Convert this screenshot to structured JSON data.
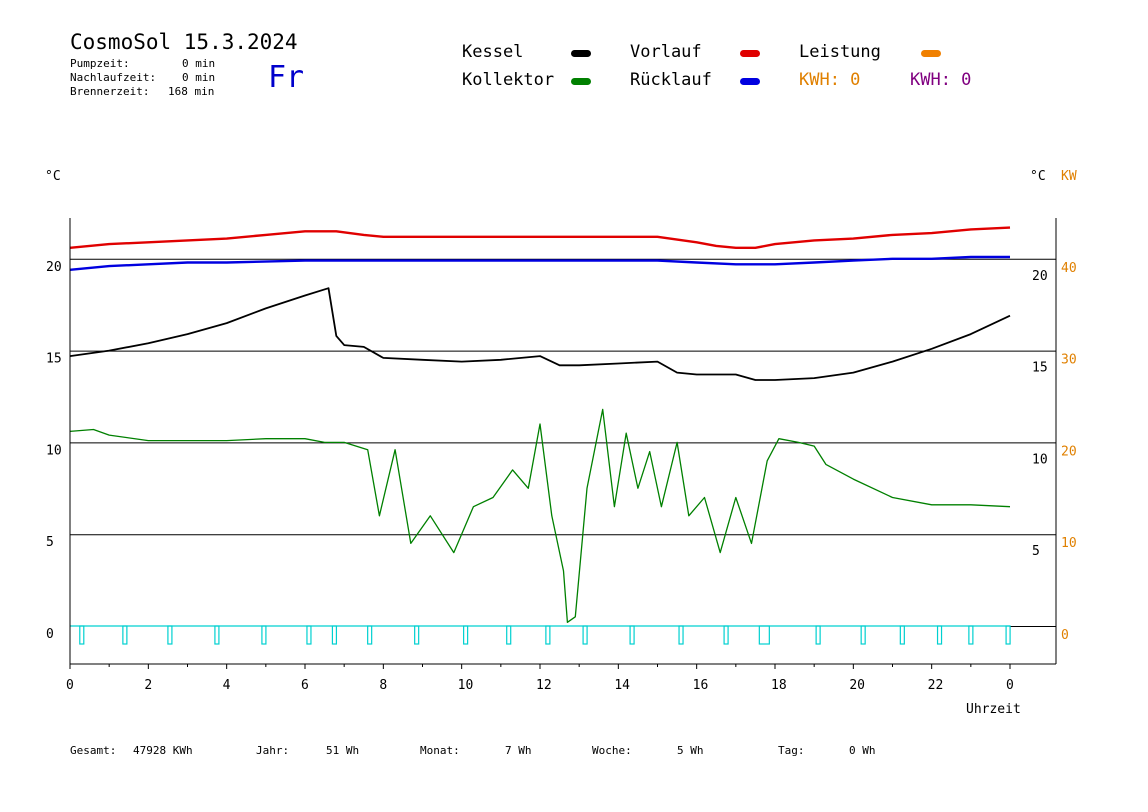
{
  "header": {
    "title": "CosmoSol 15.3.2024",
    "day": "Fr",
    "info": [
      {
        "label": "Pumpzeit:",
        "value": "0 min"
      },
      {
        "label": "Nachlaufzeit:",
        "value": "0 min"
      },
      {
        "label": "Brennerzeit:",
        "value": "168 min"
      }
    ]
  },
  "legend": {
    "kessel": {
      "label": "Kessel",
      "color": "#000000"
    },
    "vorlauf": {
      "label": "Vorlauf",
      "color": "#e00000"
    },
    "leistung": {
      "label": "Leistung",
      "color": "#f08000"
    },
    "kollektor": {
      "label": "Kollektor",
      "color": "#008000"
    },
    "ruecklauf": {
      "label": "Rücklauf",
      "color": "#0000e0"
    },
    "kwh_orange": "KWH: 0",
    "kwh_purple": "KWH: 0",
    "kwh_orange_color": "#e08000",
    "kwh_purple_color": "#800080"
  },
  "axes": {
    "left_unit": "°C",
    "right_unit": "°C",
    "right_unit2": "KW",
    "xlabel": "Uhrzeit"
  },
  "chart_data": {
    "type": "line",
    "xlabel": "Uhrzeit",
    "x_ticks": [
      "0",
      "2",
      "4",
      "6",
      "8",
      "10",
      "12",
      "14",
      "16",
      "18",
      "20",
      "22",
      "0"
    ],
    "xlim": [
      0,
      24
    ],
    "ylim": [
      -1.5,
      22.5
    ],
    "y_ticks_left": [
      0,
      5,
      10,
      15,
      20
    ],
    "y_ticks_right_temp": [
      5,
      10,
      15,
      20
    ],
    "y_ticks_right_kw": [
      0,
      10,
      20,
      30,
      40
    ],
    "grid_lines_y": [
      5,
      10,
      15,
      20
    ],
    "series": [
      {
        "name": "Vorlauf",
        "color": "#e00000",
        "x": [
          0,
          1,
          2,
          3,
          4,
          5,
          6,
          6.8,
          7.5,
          8,
          10,
          12,
          14,
          15,
          16,
          16.5,
          17,
          17.5,
          18,
          19,
          20,
          21,
          22,
          23,
          24
        ],
        "y": [
          20.6,
          20.8,
          20.9,
          21.0,
          21.1,
          21.3,
          21.5,
          21.5,
          21.3,
          21.2,
          21.2,
          21.2,
          21.2,
          21.2,
          20.9,
          20.7,
          20.6,
          20.6,
          20.8,
          21.0,
          21.1,
          21.3,
          21.4,
          21.6,
          21.7
        ]
      },
      {
        "name": "Rücklauf",
        "color": "#0000e0",
        "x": [
          0,
          1,
          2,
          3,
          4,
          6,
          8,
          10,
          12,
          14,
          15,
          16,
          17,
          18,
          19,
          20,
          21,
          22,
          23,
          24
        ],
        "y": [
          19.4,
          19.6,
          19.7,
          19.8,
          19.8,
          19.9,
          19.9,
          19.9,
          19.9,
          19.9,
          19.9,
          19.8,
          19.7,
          19.7,
          19.8,
          19.9,
          20.0,
          20.0,
          20.1,
          20.1
        ],
        "right_axis_nominal": true
      },
      {
        "name": "Kessel",
        "color": "#000000",
        "x": [
          0,
          1,
          2,
          3,
          4,
          5,
          6,
          6.6,
          6.8,
          7.0,
          7.5,
          8,
          9,
          10,
          11,
          12,
          12.5,
          13,
          14,
          15,
          15.5,
          16,
          17,
          17.5,
          18,
          19,
          20,
          21,
          22,
          23,
          24
        ],
        "y": [
          14.7,
          15.0,
          15.4,
          15.9,
          16.5,
          17.3,
          18.0,
          18.4,
          15.8,
          15.3,
          15.2,
          14.6,
          14.5,
          14.4,
          14.5,
          14.7,
          14.2,
          14.2,
          14.3,
          14.4,
          13.8,
          13.7,
          13.7,
          13.4,
          13.4,
          13.5,
          13.8,
          14.4,
          15.1,
          15.9,
          16.9
        ]
      },
      {
        "name": "Kollektor",
        "color": "#008000",
        "x": [
          0,
          0.6,
          1,
          2,
          3,
          4,
          5,
          6,
          6.5,
          7,
          7.6,
          7.9,
          8.3,
          8.7,
          9.2,
          9.8,
          10.3,
          10.8,
          11.3,
          11.7,
          12.0,
          12.3,
          12.6,
          12.7,
          12.9,
          13.2,
          13.6,
          13.9,
          14.2,
          14.5,
          14.8,
          15.1,
          15.5,
          15.8,
          16.2,
          16.6,
          17.0,
          17.4,
          17.8,
          18.1,
          18.6,
          19.0,
          19.3,
          20,
          21,
          22,
          23,
          24
        ],
        "y": [
          10.6,
          10.7,
          10.4,
          10.1,
          10.1,
          10.1,
          10.2,
          10.2,
          10.0,
          10.0,
          9.6,
          6.0,
          9.6,
          4.5,
          6.0,
          4.0,
          6.5,
          7.0,
          8.5,
          7.5,
          11.0,
          6.0,
          3.0,
          0.2,
          0.5,
          7.5,
          11.8,
          6.5,
          10.5,
          7.5,
          9.5,
          6.5,
          10.0,
          6.0,
          7.0,
          4.0,
          7.0,
          4.5,
          9.0,
          10.2,
          10.0,
          9.8,
          8.8,
          8.0,
          7.0,
          6.6,
          6.6,
          6.5
        ]
      },
      {
        "name": "Pumpe",
        "color": "#00d0d0",
        "pulses": [
          0.25,
          1.35,
          2.5,
          3.7,
          4.9,
          6.05,
          6.7,
          7.6,
          8.8,
          10.05,
          11.15,
          12.15,
          13.1,
          14.3,
          15.55,
          16.7,
          17.6,
          19.05,
          20.2,
          21.2,
          22.15,
          22.95,
          23.9
        ]
      }
    ]
  },
  "footer": [
    {
      "label": "Gesamt:",
      "value": "47928 KWh"
    },
    {
      "label": "Jahr:",
      "value": "51 Wh"
    },
    {
      "label": "Monat:",
      "value": "7 Wh"
    },
    {
      "label": "Woche:",
      "value": "5 Wh"
    },
    {
      "label": "Tag:",
      "value": "0 Wh"
    }
  ]
}
